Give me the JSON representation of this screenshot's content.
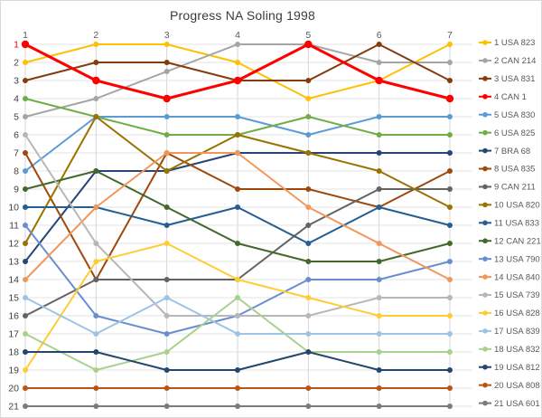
{
  "title": "Progress NA Soling 1998",
  "chart_data": {
    "type": "line",
    "title": "Progress NA Soling 1998",
    "x": [
      1,
      2,
      3,
      4,
      5,
      6,
      7
    ],
    "x_axis_position": "top",
    "xlabel": "",
    "ylabel": "",
    "y_axis_inverted": true,
    "ylim": [
      1,
      21
    ],
    "grid": true,
    "legend_position": "right",
    "x_ticks": [
      "1",
      "2",
      "3",
      "4",
      "5",
      "6",
      "7"
    ],
    "y_ticks": [
      "1",
      "2",
      "3",
      "4",
      "5",
      "6",
      "7",
      "8",
      "9",
      "10",
      "11",
      "12",
      "13",
      "14",
      "15",
      "16",
      "17",
      "18",
      "19",
      "20",
      "21"
    ],
    "y_tick_colors": {
      "1": "#ff0000",
      "default": "#404040"
    },
    "x_tick_color": "#595959",
    "legend_text_color": "#595959",
    "grid_color_h": "#e3e3e3",
    "grid_color_v": "#d6d6d6",
    "series": [
      {
        "name": "1 USA 823",
        "color": "#ffc000",
        "values": [
          2,
          1,
          1,
          2,
          4,
          3,
          1
        ]
      },
      {
        "name": "2 CAN 214",
        "color": "#a5a5a5",
        "values": [
          5,
          4,
          2.5,
          1,
          1,
          2,
          2
        ]
      },
      {
        "name": "3 USA 831",
        "color": "#843c0c",
        "values": [
          3,
          2,
          2,
          3,
          3,
          1,
          3
        ]
      },
      {
        "name": "4 CAN 1",
        "color": "#ff0000",
        "values": [
          1,
          3,
          4,
          3,
          1,
          3,
          4
        ],
        "emphasis": true
      },
      {
        "name": "5 USA 830",
        "color": "#5b9bd5",
        "values": [
          8,
          5,
          5,
          5,
          6,
          5,
          5
        ]
      },
      {
        "name": "6 USA 825",
        "color": "#70ad47",
        "values": [
          4,
          5,
          6,
          6,
          5,
          6,
          6
        ]
      },
      {
        "name": "7 BRA 68",
        "color": "#264478",
        "values": [
          13,
          8,
          8,
          7,
          7,
          7,
          7
        ]
      },
      {
        "name": "8 USA 835",
        "color": "#9e480e",
        "values": [
          7,
          14,
          7,
          9,
          9,
          10,
          8
        ]
      },
      {
        "name": "9 CAN 211",
        "color": "#636363",
        "values": [
          16,
          14,
          14,
          14,
          11,
          9,
          9
        ]
      },
      {
        "name": "10 USA 820",
        "color": "#997300",
        "values": [
          12,
          5,
          8,
          6,
          7,
          8,
          10
        ]
      },
      {
        "name": "11 USA 833",
        "color": "#255e91",
        "values": [
          10,
          10,
          11,
          10,
          12,
          10,
          11
        ]
      },
      {
        "name": "12 CAN 221",
        "color": "#43682b",
        "values": [
          9,
          8,
          10,
          12,
          13,
          13,
          12
        ]
      },
      {
        "name": "13 USA 790",
        "color": "#698ed0",
        "values": [
          11,
          16,
          17,
          16,
          14,
          14,
          13
        ]
      },
      {
        "name": "14 USA 840",
        "color": "#f1975a",
        "values": [
          14,
          10,
          7,
          7,
          10,
          12,
          14
        ]
      },
      {
        "name": "15 USA 739",
        "color": "#b7b7b7",
        "values": [
          6,
          12,
          16,
          16,
          16,
          15,
          15
        ]
      },
      {
        "name": "16 USA 828",
        "color": "#ffcd33",
        "values": [
          19,
          13,
          12,
          14,
          15,
          16,
          16
        ]
      },
      {
        "name": "17 USA 839",
        "color": "#9dc3e6",
        "values": [
          15,
          17,
          15,
          17,
          17,
          17,
          17
        ]
      },
      {
        "name": "18 USA 832",
        "color": "#a9d18e",
        "values": [
          17,
          19,
          18,
          15,
          18,
          18,
          18
        ]
      },
      {
        "name": "19 USA 812",
        "color": "#24466d",
        "values": [
          18,
          18,
          19,
          19,
          18,
          19,
          19
        ]
      },
      {
        "name": "20 USA 808",
        "color": "#bb5516",
        "values": [
          20,
          20,
          20,
          20,
          20,
          20,
          20
        ]
      },
      {
        "name": "21 USA 601",
        "color": "#7b7b7b",
        "values": [
          21,
          21,
          21,
          21,
          21,
          21,
          21
        ]
      }
    ]
  }
}
